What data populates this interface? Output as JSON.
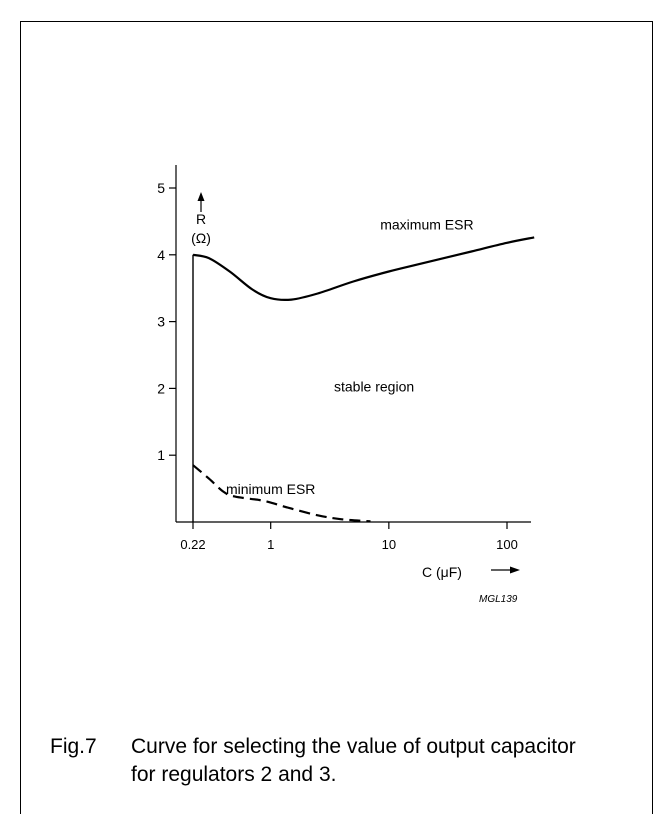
{
  "chart_data": {
    "type": "line",
    "xscale": "log",
    "xlim": [
      0.22,
      170
    ],
    "ylim": [
      0,
      5.3
    ],
    "xticks": [
      {
        "value": 0.22,
        "label": "0.22"
      },
      {
        "value": 1,
        "label": "1"
      },
      {
        "value": 10,
        "label": "10"
      },
      {
        "value": 100,
        "label": "100"
      }
    ],
    "yticks": [
      {
        "value": 1,
        "label": "1"
      },
      {
        "value": 2,
        "label": "2"
      },
      {
        "value": 3,
        "label": "3"
      },
      {
        "value": 4,
        "label": "4"
      },
      {
        "value": 5,
        "label": "5"
      }
    ],
    "xlabel": "C (μF)",
    "ylabel_line1": "R",
    "ylabel_line2": "(Ω)",
    "grid": false,
    "series": [
      {
        "name": "maximum ESR",
        "style": "solid",
        "x": [
          0.22,
          0.3,
          0.45,
          0.7,
          1.0,
          1.5,
          2.5,
          5,
          10,
          20,
          50,
          100,
          170
        ],
        "y": [
          4.0,
          3.95,
          3.75,
          3.48,
          3.35,
          3.33,
          3.42,
          3.6,
          3.75,
          3.88,
          4.05,
          4.18,
          4.26
        ]
      },
      {
        "name": "minimum ESR",
        "style": "dashed",
        "x": [
          0.22,
          0.3,
          0.4,
          0.5,
          0.8,
          1.0,
          1.5,
          2.5,
          4,
          7
        ],
        "y": [
          0.85,
          0.65,
          0.45,
          0.38,
          0.33,
          0.29,
          0.2,
          0.1,
          0.04,
          0.01
        ]
      }
    ],
    "boundary": {
      "x": 0.22,
      "y_from": 0,
      "y_to": 4.0
    },
    "annotations": [
      {
        "text": "maximum ESR",
        "x": 21,
        "y": 4.38
      },
      {
        "text": "stable region",
        "x": 7.5,
        "y": 1.95
      },
      {
        "text": "minimum ESR",
        "x": 1.0,
        "y": 0.42
      }
    ],
    "figure_code": "MGL139"
  },
  "caption": {
    "label": "Fig.7",
    "text": "Curve for selecting the value of output capacitor for regulators 2 and 3."
  }
}
